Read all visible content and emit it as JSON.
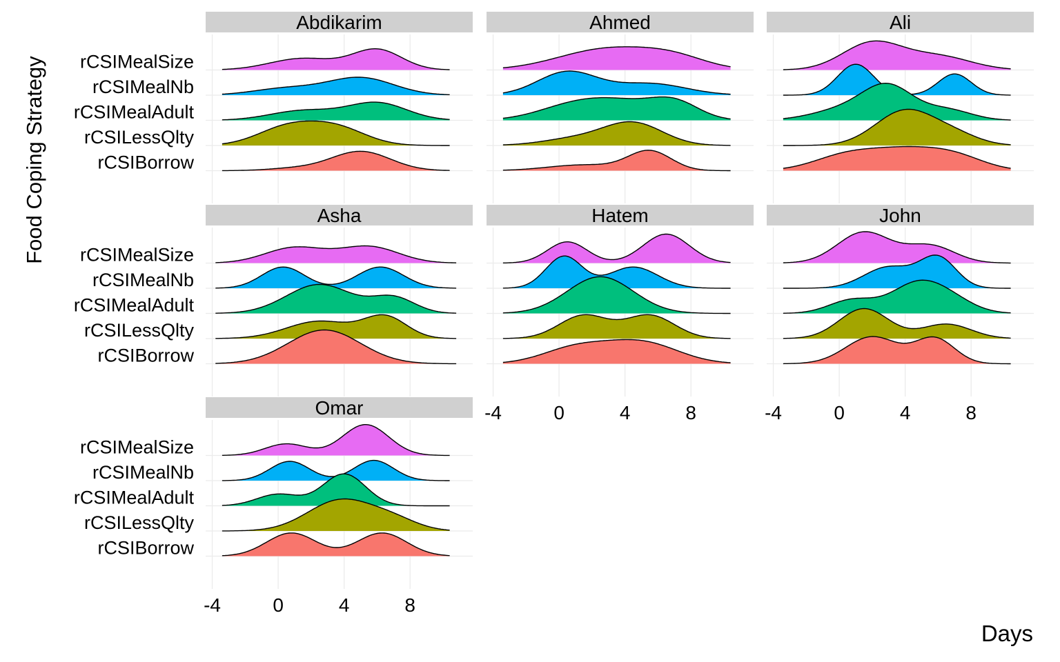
{
  "chart_data": {
    "type": "ridgeline",
    "xlabel": "Days",
    "ylabel": "Food Coping Strategy",
    "xlim": [
      -4.4,
      11.8
    ],
    "x_ticks": [
      "-4",
      "0",
      "4",
      "8"
    ],
    "categories": [
      "rCSIBorrow",
      "rCSILessQlty",
      "rCSIMealAdult",
      "rCSIMealNb",
      "rCSIMealSize"
    ],
    "colors": {
      "rCSIBorrow": "#F8766D",
      "rCSILessQlty": "#A3A500",
      "rCSIMealAdult": "#00BF7D",
      "rCSIMealNb": "#00B0F6",
      "rCSIMealSize": "#E76BF3"
    },
    "strip_color": "#D0D0D0",
    "grid": true,
    "grid_color": "#EBEBEB",
    "panels": [
      {
        "name": "Abdikarim",
        "x_range": [
          -3.4,
          10.4
        ],
        "series": [
          {
            "name": "rCSIBorrow",
            "peaks": [
              [
                1.0,
                0.12,
                1.6
              ],
              [
                5.0,
                1.0,
                1.8
              ]
            ]
          },
          {
            "name": "rCSILessQlty",
            "peaks": [
              [
                0.5,
                0.9,
                1.8
              ],
              [
                3.5,
                0.9,
                1.8
              ]
            ]
          },
          {
            "name": "rCSIMealAdult",
            "peaks": [
              [
                1.5,
                0.5,
                2.0
              ],
              [
                6.0,
                0.9,
                1.8
              ]
            ]
          },
          {
            "name": "rCSIMealNb",
            "peaks": [
              [
                0.5,
                0.35,
                2.0
              ],
              [
                5.0,
                0.9,
                2.0
              ]
            ]
          },
          {
            "name": "rCSIMealSize",
            "peaks": [
              [
                1.5,
                0.6,
                2.0
              ],
              [
                6.0,
                1.05,
                1.5
              ]
            ]
          }
        ]
      },
      {
        "name": "Ahmed",
        "x_range": [
          -3.4,
          10.4
        ],
        "series": [
          {
            "name": "rCSIBorrow",
            "peaks": [
              [
                1.5,
                0.3,
                2.2
              ],
              [
                5.5,
                1.0,
                1.3
              ]
            ]
          },
          {
            "name": "rCSILessQlty",
            "peaks": [
              [
                1.0,
                0.35,
                2.0
              ],
              [
                4.5,
                1.15,
                1.8
              ]
            ]
          },
          {
            "name": "rCSIMealAdult",
            "peaks": [
              [
                1.0,
                0.8,
                2.2
              ],
              [
                4.0,
                0.7,
                2.0
              ],
              [
                7.0,
                0.9,
                1.5
              ]
            ]
          },
          {
            "name": "rCSIMealNb",
            "peaks": [
              [
                0.5,
                1.2,
                1.8
              ],
              [
                5.5,
                0.6,
                2.2
              ]
            ]
          },
          {
            "name": "rCSIMealSize",
            "peaks": [
              [
                3.0,
                1.1,
                3.0
              ],
              [
                7.0,
                0.5,
                2.0
              ]
            ]
          }
        ]
      },
      {
        "name": "Ali",
        "x_range": [
          -3.4,
          10.4
        ],
        "series": [
          {
            "name": "rCSIBorrow",
            "peaks": [
              [
                0.5,
                0.8,
                2.0
              ],
              [
                4.0,
                0.9,
                2.0
              ],
              [
                7.0,
                0.7,
                1.8
              ]
            ]
          },
          {
            "name": "rCSILessQlty",
            "peaks": [
              [
                4.0,
                1.8,
                1.8
              ],
              [
                7.0,
                0.5,
                1.5
              ]
            ]
          },
          {
            "name": "rCSIMealAdult",
            "peaks": [
              [
                0.5,
                0.6,
                2.0
              ],
              [
                3.0,
                1.6,
                1.5
              ],
              [
                6.5,
                0.55,
                1.5
              ]
            ]
          },
          {
            "name": "rCSIMealNb",
            "peaks": [
              [
                1.0,
                1.6,
                1.1
              ],
              [
                7.0,
                1.1,
                1.0
              ]
            ]
          },
          {
            "name": "rCSIMealSize",
            "peaks": [
              [
                2.0,
                1.4,
                1.8
              ],
              [
                6.0,
                0.7,
                2.0
              ]
            ]
          }
        ]
      },
      {
        "name": "Asha",
        "x_range": [
          -3.8,
          10.8
        ],
        "series": [
          {
            "name": "rCSIBorrow",
            "peaks": [
              [
                2.8,
                1.75,
                2.2
              ]
            ]
          },
          {
            "name": "rCSILessQlty",
            "peaks": [
              [
                2.5,
                0.9,
                2.0
              ],
              [
                6.5,
                1.1,
                1.3
              ]
            ]
          },
          {
            "name": "rCSIMealAdult",
            "peaks": [
              [
                2.5,
                1.5,
                2.0
              ],
              [
                7.0,
                0.8,
                1.3
              ]
            ]
          },
          {
            "name": "rCSIMealNb",
            "peaks": [
              [
                0.3,
                1.1,
                1.3
              ],
              [
                6.2,
                1.1,
                1.4
              ]
            ]
          },
          {
            "name": "rCSIMealSize",
            "peaks": [
              [
                1.0,
                0.8,
                1.8
              ],
              [
                5.5,
                0.85,
                1.8
              ]
            ]
          }
        ]
      },
      {
        "name": "Hatem",
        "x_range": [
          -3.4,
          10.4
        ],
        "series": [
          {
            "name": "rCSIBorrow",
            "peaks": [
              [
                1.0,
                0.8,
                2.0
              ],
              [
                5.0,
                1.1,
                2.2
              ]
            ]
          },
          {
            "name": "rCSILessQlty",
            "peaks": [
              [
                1.5,
                1.2,
                1.5
              ],
              [
                5.5,
                1.2,
                1.5
              ]
            ]
          },
          {
            "name": "rCSIMealAdult",
            "peaks": [
              [
                2.5,
                1.9,
                2.0
              ]
            ]
          },
          {
            "name": "rCSIMealNb",
            "peaks": [
              [
                0.3,
                1.65,
                1.1
              ],
              [
                4.5,
                1.1,
                1.5
              ]
            ]
          },
          {
            "name": "rCSIMealSize",
            "peaks": [
              [
                0.5,
                1.1,
                1.2
              ],
              [
                6.5,
                1.5,
                1.4
              ]
            ]
          }
        ]
      },
      {
        "name": "John",
        "x_range": [
          -3.4,
          10.4
        ],
        "series": [
          {
            "name": "rCSIBorrow",
            "peaks": [
              [
                2.0,
                1.4,
                1.6
              ],
              [
                5.8,
                1.3,
                1.2
              ]
            ]
          },
          {
            "name": "rCSILessQlty",
            "peaks": [
              [
                1.5,
                1.55,
                1.5
              ],
              [
                6.5,
                0.75,
                1.5
              ]
            ]
          },
          {
            "name": "rCSIMealAdult",
            "peaks": [
              [
                0.8,
                0.7,
                1.4
              ],
              [
                4.5,
                1.3,
                1.5
              ],
              [
                6.5,
                0.8,
                1.5
              ]
            ]
          },
          {
            "name": "rCSIMealNb",
            "peaks": [
              [
                3.0,
                1.1,
                1.5
              ],
              [
                6.0,
                1.55,
                1.1
              ]
            ]
          },
          {
            "name": "rCSIMealSize",
            "peaks": [
              [
                1.5,
                1.6,
                1.6
              ],
              [
                5.5,
                0.9,
                1.5
              ]
            ]
          }
        ]
      },
      {
        "name": "Omar",
        "x_range": [
          -3.4,
          10.4
        ],
        "series": [
          {
            "name": "rCSIBorrow",
            "peaks": [
              [
                0.8,
                1.2,
                1.5
              ],
              [
                6.3,
                1.2,
                1.5
              ]
            ]
          },
          {
            "name": "rCSILessQlty",
            "peaks": [
              [
                3.8,
                1.6,
                2.0
              ],
              [
                7.0,
                0.5,
                1.5
              ]
            ]
          },
          {
            "name": "rCSIMealAdult",
            "peaks": [
              [
                0.0,
                0.6,
                1.3
              ],
              [
                4.0,
                1.65,
                1.3
              ]
            ]
          },
          {
            "name": "rCSIMealNb",
            "peaks": [
              [
                0.7,
                1.0,
                1.2
              ],
              [
                5.8,
                1.05,
                1.2
              ]
            ]
          },
          {
            "name": "rCSIMealSize",
            "peaks": [
              [
                0.5,
                0.6,
                1.3
              ],
              [
                5.3,
                1.6,
                1.4
              ]
            ]
          }
        ]
      }
    ]
  }
}
